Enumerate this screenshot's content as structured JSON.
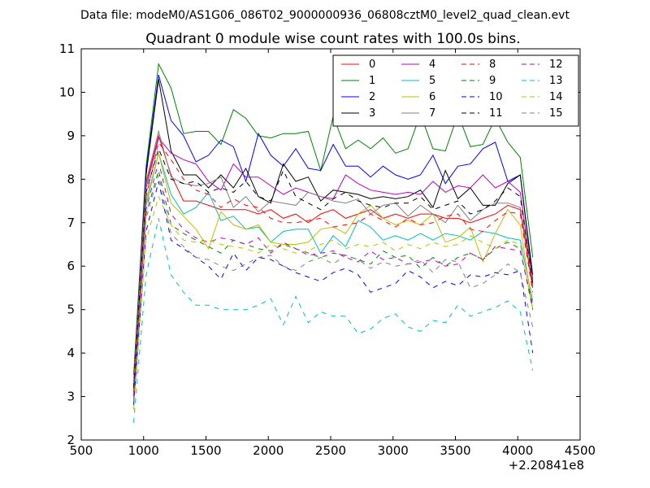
{
  "figure": {
    "suptitle": "Data file: modeM0/AS1G06_086T02_9000000936_06808cztM0_level2_quad_clean.evt",
    "title": "Quadrant 0 module wise count rates with 100.0s bins.",
    "x_offset_label": "+2.20841e8"
  },
  "chart_data": {
    "type": "line",
    "title": "Quadrant 0 module wise count rates with 100.0s bins.",
    "xlabel": "",
    "ylabel": "",
    "x_offset": "+2.20841e8",
    "xlim": [
      500,
      4500
    ],
    "ylim": [
      2,
      11
    ],
    "x_ticks": [
      500,
      1000,
      1500,
      2000,
      2500,
      3000,
      3500,
      4000,
      4500
    ],
    "y_ticks": [
      2,
      3,
      4,
      5,
      6,
      7,
      8,
      9,
      10,
      11
    ],
    "grid": false,
    "legend_position": "top-right",
    "legend_columns": 4,
    "x": [
      920,
      1020,
      1120,
      1220,
      1320,
      1420,
      1520,
      1620,
      1720,
      1820,
      1920,
      2020,
      2120,
      2220,
      2320,
      2420,
      2520,
      2620,
      2720,
      2820,
      2920,
      3020,
      3120,
      3220,
      3320,
      3420,
      3520,
      3620,
      3720,
      3820,
      3920,
      4020,
      4120
    ],
    "series": [
      {
        "name": "0",
        "color": "#ff0000",
        "dashed": false,
        "values": [
          3.2,
          7.9,
          9.0,
          8.1,
          7.5,
          7.5,
          7.4,
          7.3,
          7.3,
          7.3,
          7.2,
          7.3,
          7.1,
          7.2,
          7.0,
          7.2,
          7.3,
          7.1,
          7.2,
          7.3,
          7.1,
          7.2,
          7.1,
          7.2,
          7.2,
          7.1,
          7.1,
          7.0,
          7.1,
          7.2,
          7.4,
          7.3,
          5.5
        ]
      },
      {
        "name": "1",
        "color": "#008000",
        "dashed": false,
        "values": [
          3.5,
          8.3,
          10.65,
          10.1,
          9.05,
          9.1,
          9.1,
          8.8,
          9.6,
          9.4,
          9.0,
          8.95,
          9.05,
          9.05,
          9.1,
          8.2,
          9.45,
          8.7,
          8.9,
          8.7,
          8.95,
          8.6,
          8.7,
          9.5,
          8.7,
          8.65,
          9.5,
          8.75,
          8.8,
          9.4,
          8.85,
          8.5,
          6.2
        ]
      },
      {
        "name": "2",
        "color": "#0000ff",
        "dashed": false,
        "values": [
          3.3,
          8.2,
          10.4,
          9.35,
          9.0,
          8.4,
          8.55,
          8.9,
          8.75,
          7.95,
          9.05,
          8.55,
          8.3,
          8.7,
          8.25,
          8.2,
          8.8,
          8.3,
          8.3,
          8.05,
          8.3,
          8.1,
          8.0,
          8.1,
          8.55,
          7.9,
          8.3,
          8.35,
          8.7,
          8.85,
          7.95,
          8.1,
          5.8
        ]
      },
      {
        "name": "3",
        "color": "#000000",
        "dashed": false,
        "values": [
          3.3,
          8.1,
          10.3,
          8.65,
          8.1,
          8.1,
          7.8,
          8.1,
          7.8,
          8.25,
          7.6,
          7.45,
          8.35,
          7.95,
          8.05,
          7.5,
          7.75,
          7.7,
          7.65,
          7.55,
          7.6,
          7.55,
          7.6,
          7.75,
          7.35,
          8.2,
          7.55,
          7.8,
          7.4,
          7.4,
          7.9,
          8.1,
          5.7
        ]
      },
      {
        "name": "4",
        "color": "#bf00bf",
        "dashed": false,
        "values": [
          3.2,
          7.8,
          8.95,
          8.6,
          8.45,
          8.35,
          7.95,
          7.75,
          8.35,
          8.05,
          8.05,
          7.85,
          7.65,
          7.8,
          7.7,
          7.6,
          7.55,
          8.1,
          7.9,
          7.75,
          7.7,
          7.65,
          7.7,
          7.65,
          7.95,
          7.7,
          7.85,
          7.8,
          8.1,
          7.8,
          7.95,
          7.7,
          5.6
        ]
      },
      {
        "name": "5",
        "color": "#00bfbf",
        "dashed": false,
        "values": [
          3.0,
          7.4,
          8.6,
          7.65,
          7.2,
          7.35,
          7.7,
          7.05,
          7.15,
          6.85,
          6.9,
          6.55,
          6.8,
          6.85,
          6.85,
          6.3,
          6.7,
          6.45,
          7.05,
          6.9,
          6.6,
          6.7,
          6.6,
          6.75,
          6.6,
          6.75,
          6.7,
          6.6,
          6.8,
          6.75,
          6.65,
          6.6,
          5.2
        ]
      },
      {
        "name": "6",
        "color": "#bfbf00",
        "dashed": false,
        "values": [
          3.1,
          7.5,
          8.6,
          7.45,
          7.15,
          6.85,
          6.4,
          7.25,
          6.95,
          6.85,
          6.95,
          6.55,
          6.5,
          6.5,
          6.55,
          6.85,
          6.9,
          6.75,
          7.2,
          7.4,
          7.1,
          6.95,
          7.05,
          6.95,
          7.2,
          6.55,
          6.65,
          6.9,
          6.1,
          6.75,
          7.3,
          6.95,
          5.0
        ]
      },
      {
        "name": "7",
        "color": "#808080",
        "dashed": false,
        "values": [
          3.3,
          7.95,
          9.1,
          8.05,
          7.9,
          7.85,
          7.9,
          8.05,
          7.35,
          7.6,
          7.25,
          7.5,
          7.45,
          7.4,
          7.7,
          7.6,
          7.5,
          7.45,
          7.55,
          7.2,
          7.4,
          7.45,
          7.15,
          7.4,
          7.2,
          7.0,
          7.4,
          7.05,
          7.3,
          7.45,
          7.45,
          7.35,
          5.7
        ]
      },
      {
        "name": "8",
        "color": "#ff0000",
        "dashed": true,
        "values": [
          3.1,
          7.6,
          8.85,
          8.45,
          8.0,
          7.75,
          7.65,
          7.35,
          7.55,
          7.4,
          7.35,
          7.1,
          7.0,
          7.0,
          7.05,
          7.1,
          6.9,
          6.95,
          7.0,
          7.2,
          7.05,
          6.9,
          7.1,
          6.95,
          7.0,
          7.15,
          7.2,
          6.85,
          6.8,
          7.05,
          7.25,
          7.2,
          5.4
        ]
      },
      {
        "name": "9",
        "color": "#008000",
        "dashed": true,
        "values": [
          2.9,
          7.2,
          8.2,
          6.95,
          6.75,
          6.6,
          6.45,
          6.3,
          6.6,
          6.5,
          6.4,
          6.35,
          6.5,
          6.4,
          6.3,
          6.2,
          6.3,
          6.25,
          6.15,
          6.05,
          6.35,
          6.2,
          6.25,
          5.95,
          6.2,
          6.0,
          6.2,
          6.3,
          6.15,
          6.4,
          6.55,
          6.4,
          5.0
        ]
      },
      {
        "name": "10",
        "color": "#0000ff",
        "dashed": true,
        "values": [
          2.8,
          6.8,
          7.95,
          6.6,
          6.4,
          6.2,
          6.0,
          5.7,
          6.3,
          5.9,
          6.2,
          6.15,
          6.0,
          5.85,
          5.75,
          5.65,
          5.85,
          5.95,
          5.8,
          5.4,
          5.5,
          5.6,
          5.9,
          5.75,
          5.5,
          5.65,
          5.55,
          5.8,
          5.75,
          5.85,
          5.8,
          5.9,
          4.0
        ]
      },
      {
        "name": "11",
        "color": "#000000",
        "dashed": true,
        "values": [
          3.2,
          7.7,
          8.7,
          8.0,
          7.9,
          7.95,
          7.7,
          7.8,
          7.7,
          7.95,
          7.6,
          7.5,
          8.2,
          7.6,
          7.45,
          7.3,
          7.55,
          7.7,
          7.5,
          7.4,
          7.35,
          7.45,
          7.45,
          7.6,
          7.3,
          7.4,
          7.5,
          7.2,
          7.3,
          7.5,
          7.8,
          7.6,
          5.6
        ]
      },
      {
        "name": "12",
        "color": "#bf00bf",
        "dashed": true,
        "values": [
          3.0,
          7.3,
          8.4,
          7.2,
          6.85,
          6.65,
          6.55,
          6.65,
          6.6,
          6.5,
          6.65,
          6.3,
          6.55,
          6.4,
          6.25,
          6.3,
          6.35,
          6.2,
          6.1,
          6.35,
          6.15,
          6.2,
          6.05,
          6.1,
          6.15,
          6.0,
          6.05,
          6.3,
          6.15,
          6.45,
          6.4,
          6.35,
          5.1
        ]
      },
      {
        "name": "13",
        "color": "#00bfbf",
        "dashed": true,
        "values": [
          2.4,
          5.8,
          7.1,
          5.8,
          5.4,
          5.1,
          5.1,
          5.0,
          5.0,
          5.0,
          5.1,
          5.25,
          4.65,
          5.3,
          4.7,
          4.95,
          4.85,
          4.85,
          4.45,
          4.55,
          4.8,
          4.9,
          4.6,
          4.5,
          4.75,
          4.7,
          5.1,
          4.85,
          4.95,
          5.05,
          5.2,
          4.95,
          3.6
        ]
      },
      {
        "name": "14",
        "color": "#bfbf00",
        "dashed": true,
        "values": [
          2.7,
          6.6,
          7.6,
          6.95,
          6.6,
          6.55,
          6.6,
          6.5,
          6.45,
          6.4,
          6.3,
          6.5,
          6.4,
          6.3,
          6.35,
          6.5,
          6.6,
          6.4,
          6.5,
          6.45,
          6.55,
          6.35,
          6.5,
          6.4,
          6.55,
          6.45,
          6.5,
          6.7,
          6.55,
          6.4,
          6.6,
          6.5,
          5.0
        ]
      },
      {
        "name": "15",
        "color": "#808080",
        "dashed": true,
        "values": [
          2.9,
          7.1,
          8.1,
          6.75,
          6.45,
          6.2,
          6.15,
          6.0,
          5.9,
          6.05,
          6.2,
          6.25,
          6.0,
          5.9,
          6.1,
          6.2,
          6.05,
          6.25,
          6.15,
          5.95,
          6.1,
          6.0,
          6.05,
          6.15,
          5.85,
          6.15,
          6.1,
          5.5,
          5.6,
          5.8,
          6.05,
          5.85,
          4.6
        ]
      }
    ]
  }
}
